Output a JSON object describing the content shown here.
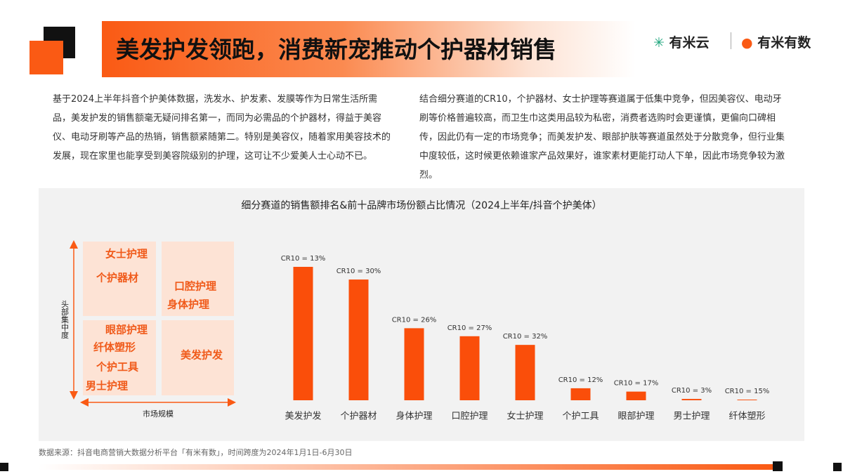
{
  "header": {
    "title": "美发护发领跑，消费新宠推动个护器材销售",
    "logos": [
      "有米云",
      "有米有数"
    ]
  },
  "paragraphs": [
    "基于2024上半年抖音个护美体数据，洗发水、护发素、发膜等作为日常生活所需品，美发护发的销售额毫无疑问排名第一，而同为必需品的个护器材，得益于美容仪、电动牙刷等产品的热销，销售额紧随第二。特别是美容仪，随着家用美容技术的发展，现在家里也能享受到美容院级别的护理，这可让不少爱美人士心动不已。",
    "结合细分赛道的CR10，个护器材、女士护理等赛道属于低集中竞争，但因美容仪、电动牙刷等价格普遍较高，而卫生巾这类用品较为私密，消费者选购时会更谨慎，更偏向口碑相传，因此仍有一定的市场竞争；而美发护发、眼部护肤等赛道虽然处于分散竞争，但行业集中度较低，这时候更依赖谁家产品效果好，谁家素材更能打动人下单，因此市场竞争较为激烈。"
  ],
  "matrix": {
    "y_label": "头部集中度",
    "x_label": "市场规模",
    "cells": [
      [
        "女士护理",
        "个护器材"
      ],
      [
        "口腔护理",
        "身体护理"
      ],
      [
        "眼部护理",
        "纤体塑形",
        "个护工具",
        "男士护理"
      ],
      [
        "美发护发"
      ]
    ]
  },
  "chart_data": {
    "type": "bar",
    "title": "细分赛道的销售额排名&前十品牌市场份额占比情况（2024上半年/抖音个护美体）",
    "categories": [
      "美发护发",
      "个护器材",
      "身体护理",
      "口腔护理",
      "女士护理",
      "个护工具",
      "眼部护理",
      "男士护理",
      "纤体塑形"
    ],
    "values": [
      100,
      90.5,
      54,
      48,
      41.5,
      9,
      6.5,
      1,
      0.5
    ],
    "annotations": [
      "CR10 = 13%",
      "CR10 = 30%",
      "CR10 = 26%",
      "CR10 = 27%",
      "CR10 = 32%",
      "CR10 = 12%",
      "CR10 = 17%",
      "CR10 = 3%",
      "CR10 = 15%"
    ],
    "color": "#fa4e0a"
  },
  "source": "数据来源：抖音电商营销大数据分析平台「有米有数」，时间跨度为2024年1月1日-6月30日"
}
